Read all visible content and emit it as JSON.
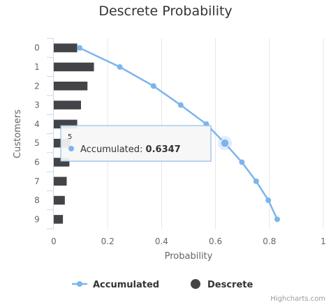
{
  "chart_data": {
    "type": "bar+line",
    "orientation": "horizontal",
    "title": "Descrete Probability",
    "xlabel": "Probability",
    "ylabel": "Customers",
    "xlim": [
      0,
      1
    ],
    "x_ticks": [
      "0",
      "0.2",
      "0.4",
      "0.6",
      "0.8",
      "1"
    ],
    "categories": [
      "0",
      "1",
      "2",
      "3",
      "4",
      "5",
      "6",
      "7",
      "8",
      "9"
    ],
    "series": [
      {
        "name": "Descrete",
        "type": "bar",
        "color": "#434348",
        "values": [
          0.087,
          0.149,
          0.125,
          0.101,
          0.087,
          0.062,
          0.058,
          0.048,
          0.041,
          0.034
        ]
      },
      {
        "name": "Accumulated",
        "type": "line",
        "color": "#7cb5ec",
        "values": [
          0.096,
          0.245,
          0.37,
          0.471,
          0.566,
          0.6347,
          0.698,
          0.751,
          0.796,
          0.829
        ]
      }
    ],
    "tooltip": {
      "category": "5",
      "series": "Accumulated",
      "label": "Accumulated:",
      "value": "0.6347"
    },
    "legend_position": "bottom-center",
    "grid": "vertical",
    "credits": "Highcharts.com"
  }
}
